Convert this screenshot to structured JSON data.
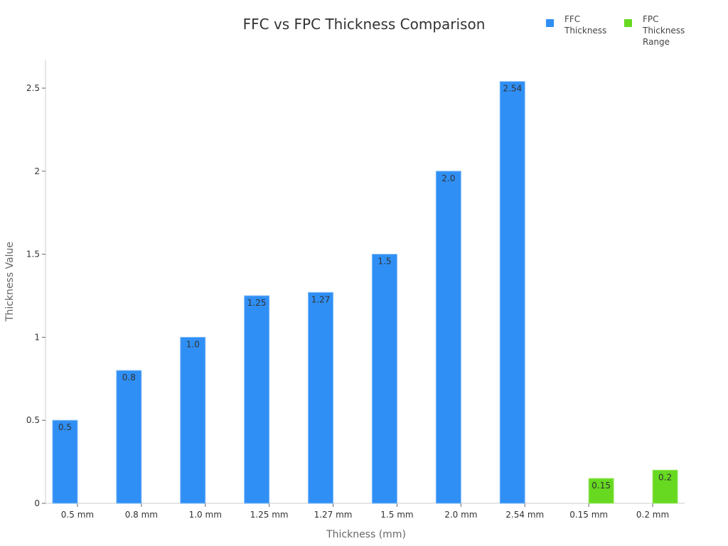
{
  "chart_data": {
    "type": "bar",
    "title": "FFC vs FPC Thickness Comparison",
    "xlabel": "Thickness (mm)",
    "ylabel": "Thickness Value",
    "ylim": [
      0,
      2.68
    ],
    "yticks": [
      0,
      0.5,
      1,
      1.5,
      2,
      2.5
    ],
    "ytick_labels": [
      "0",
      "0.5",
      "1",
      "1.5",
      "2",
      "2.5"
    ],
    "grid": false,
    "legend_position": "top-right",
    "categories": [
      "0.5 mm",
      "0.8 mm",
      "1.0 mm",
      "1.25 mm",
      "1.27 mm",
      "1.5 mm",
      "2.0 mm",
      "2.54 mm",
      "0.15 mm",
      "0.2 mm"
    ],
    "series": [
      {
        "name": "FFC Thickness",
        "color": "#2f8ff5",
        "values": [
          0.5,
          0.8,
          1.0,
          1.25,
          1.27,
          1.5,
          2.0,
          2.54,
          null,
          null
        ],
        "labels": [
          "0.5",
          "0.8",
          "1.0",
          "1.25",
          "1.27",
          "1.5",
          "2.0",
          "2.54",
          "",
          ""
        ]
      },
      {
        "name": "FPC Thickness Range",
        "color": "#66d920",
        "values": [
          null,
          null,
          null,
          null,
          null,
          null,
          null,
          null,
          0.15,
          0.2
        ],
        "labels": [
          "",
          "",
          "",
          "",
          "",
          "",
          "",
          "",
          "0.15",
          "0.2"
        ]
      }
    ]
  },
  "legend": {
    "items": [
      {
        "label": "FFC\nThickness",
        "color": "#2f8ff5"
      },
      {
        "label": "FPC\nThickness\nRange",
        "color": "#66d920"
      }
    ]
  }
}
